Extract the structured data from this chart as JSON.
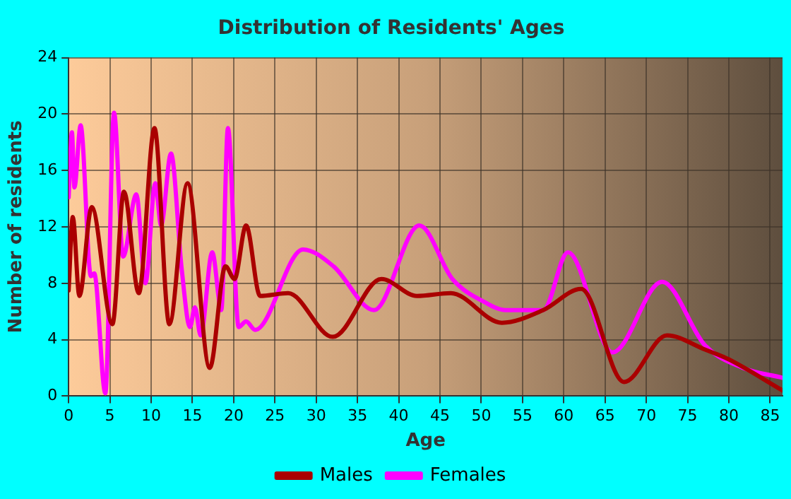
{
  "chart_data": {
    "type": "line",
    "title": "Distribution of Residents' Ages",
    "xlabel": "Age",
    "ylabel": "Number of residents",
    "xlim": [
      0,
      86.5
    ],
    "xticks": [
      0,
      5,
      10,
      15,
      20,
      25,
      30,
      35,
      40,
      45,
      50,
      55,
      60,
      65,
      70,
      75,
      80,
      85
    ],
    "ylim": [
      0,
      24
    ],
    "yticks": [
      0,
      4,
      8,
      12,
      16,
      20,
      24
    ],
    "grid": true,
    "legend": "bottom",
    "marker": "none",
    "series": [
      {
        "name": "Males",
        "color": "#aa0000",
        "x": [
          0,
          0.5,
          1.3,
          2.8,
          5.3,
          6.7,
          8.5,
          10.4,
          12.2,
          14.4,
          17.1,
          19,
          20.1,
          21.5,
          23.2,
          26.6,
          32,
          37.9,
          42.2,
          46.3,
          52.5,
          57.5,
          62.1,
          67.3,
          72.5,
          77.1,
          80,
          86.5
        ],
        "values": [
          7.5,
          12.7,
          7.1,
          13.4,
          5.1,
          14.5,
          7.3,
          19,
          5.1,
          15.1,
          2,
          9.2,
          8.3,
          12.1,
          7.1,
          7.3,
          4.2,
          8.3,
          7.1,
          7.3,
          5.2,
          6.1,
          7.6,
          1,
          4.3,
          3.3,
          2.6,
          0.4
        ]
      },
      {
        "name": "Females",
        "color": "#ff00ff",
        "x": [
          0,
          0.4,
          0.7,
          1.45,
          2.7,
          3.1,
          4.45,
          5.5,
          6.6,
          8.2,
          9.3,
          10.5,
          11.2,
          12.4,
          13.7,
          14.7,
          15.3,
          16,
          17.4,
          18.5,
          19.3,
          20.6,
          21.5,
          22.6,
          28.4,
          32.1,
          37,
          42.5,
          46.5,
          50.6,
          52.9,
          57.5,
          60.5,
          65.9,
          71.9,
          77.1,
          81.7,
          86.5
        ],
        "values": [
          14.1,
          18.7,
          14.8,
          19.2,
          8.5,
          8.7,
          0.2,
          20.1,
          9.9,
          14.3,
          8,
          15.1,
          12.1,
          17.2,
          9,
          4.9,
          6.3,
          4.3,
          10.2,
          6.1,
          19,
          4.9,
          5.3,
          4.7,
          10.4,
          9.2,
          6.1,
          12.1,
          8.3,
          6.6,
          6.1,
          6.1,
          10.2,
          3.1,
          8.1,
          3.6,
          2,
          1.3
        ]
      }
    ]
  }
}
